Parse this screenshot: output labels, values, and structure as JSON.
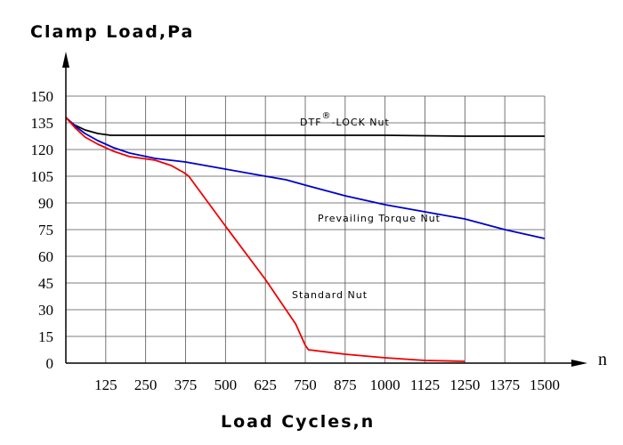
{
  "chart_data": {
    "type": "line",
    "ylabel": "Clamp Load,Pa",
    "xlabel": "Load Cycles,n",
    "x_axis_symbol": "n",
    "xlim": [
      0,
      1500
    ],
    "ylim": [
      0,
      150
    ],
    "x_ticks": [
      125,
      250,
      375,
      500,
      625,
      750,
      875,
      1000,
      1125,
      1250,
      1375,
      1500
    ],
    "x_tick_labels": [
      "125",
      "250",
      "375",
      "500",
      "625",
      "750",
      "875",
      "1000",
      "1125",
      "1250",
      "1375",
      "1500"
    ],
    "y_ticks": [
      0,
      15,
      30,
      45,
      60,
      75,
      90,
      105,
      120,
      135,
      150
    ],
    "y_tick_labels": [
      "0",
      "15",
      "30",
      "45",
      "60",
      "75",
      "90",
      "105",
      "120",
      "135",
      "150"
    ],
    "grid": true,
    "series": [
      {
        "name": "DTF®-LOCK Nut",
        "label_main": "DTF",
        "label_mark": "®",
        "label_rest": "-LOCK Nut",
        "color": "#000000",
        "points": [
          [
            0,
            138
          ],
          [
            25,
            134
          ],
          [
            60,
            131
          ],
          [
            100,
            129
          ],
          [
            140,
            128
          ],
          [
            250,
            128
          ],
          [
            500,
            128
          ],
          [
            750,
            128
          ],
          [
            1000,
            128
          ],
          [
            1250,
            127.5
          ],
          [
            1500,
            127.5
          ]
        ]
      },
      {
        "name": "Prevailing Torque Nut",
        "color": "#0000cc",
        "points": [
          [
            0,
            138
          ],
          [
            30,
            133
          ],
          [
            60,
            129
          ],
          [
            100,
            125
          ],
          [
            150,
            121
          ],
          [
            200,
            118
          ],
          [
            280,
            115
          ],
          [
            375,
            113
          ],
          [
            500,
            109
          ],
          [
            625,
            105
          ],
          [
            690,
            103
          ],
          [
            750,
            100
          ],
          [
            875,
            94
          ],
          [
            1000,
            89
          ],
          [
            1125,
            85
          ],
          [
            1250,
            81
          ],
          [
            1375,
            75
          ],
          [
            1500,
            70
          ]
        ]
      },
      {
        "name": "Standard Nut",
        "color": "#ee0000",
        "points": [
          [
            0,
            138
          ],
          [
            30,
            132
          ],
          [
            60,
            127
          ],
          [
            100,
            123
          ],
          [
            150,
            119
          ],
          [
            200,
            116
          ],
          [
            280,
            114
          ],
          [
            330,
            111
          ],
          [
            370,
            107
          ],
          [
            385,
            105
          ],
          [
            500,
            77
          ],
          [
            625,
            47
          ],
          [
            720,
            22
          ],
          [
            750,
            10
          ],
          [
            760,
            7.5
          ],
          [
            875,
            5
          ],
          [
            1000,
            3
          ],
          [
            1125,
            1.5
          ],
          [
            1250,
            1
          ]
        ]
      }
    ]
  }
}
